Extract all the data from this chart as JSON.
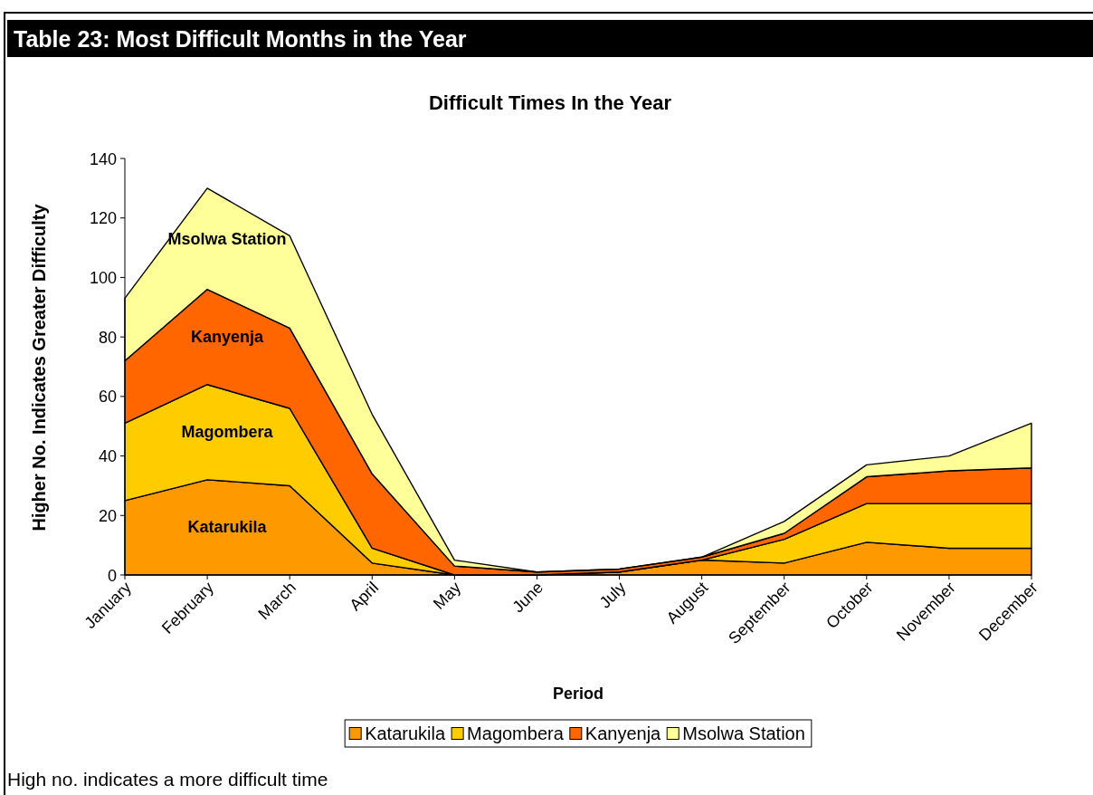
{
  "chart_data": {
    "type": "area",
    "title": "Table 23: Most Difficult Months in the Year",
    "subtitle": "Difficult Times In the Year",
    "xlabel": "Period",
    "ylabel": "Higher No. Indicates Greater Difficulty",
    "categories": [
      "January",
      "February",
      "March",
      "April",
      "May",
      "June",
      "July",
      "August",
      "September",
      "October",
      "November",
      "December"
    ],
    "series": [
      {
        "name": "Katarukila",
        "color": "#ff9900",
        "values": [
          25,
          32,
          30,
          4,
          0,
          0,
          1,
          5,
          4,
          11,
          9,
          9
        ]
      },
      {
        "name": "Magombera",
        "color": "#ffcc00",
        "values": [
          26,
          32,
          26,
          5,
          0,
          0,
          0,
          0,
          8,
          13,
          15,
          15
        ]
      },
      {
        "name": "Kanyenja",
        "color": "#ff6600",
        "values": [
          21,
          32,
          27,
          25,
          3,
          1,
          1,
          1,
          2,
          9,
          11,
          12
        ]
      },
      {
        "name": "Msolwa Station",
        "color": "#ffff99",
        "values": [
          21,
          34,
          31,
          20,
          2,
          0,
          0,
          0,
          4,
          4,
          5,
          15
        ]
      }
    ],
    "stacked": true,
    "ylim": [
      0,
      140
    ],
    "yticks": [
      0,
      20,
      40,
      60,
      80,
      100,
      120,
      140
    ],
    "legend": "bottom",
    "annotations": [
      "High no. indicates a more difficult time"
    ]
  }
}
